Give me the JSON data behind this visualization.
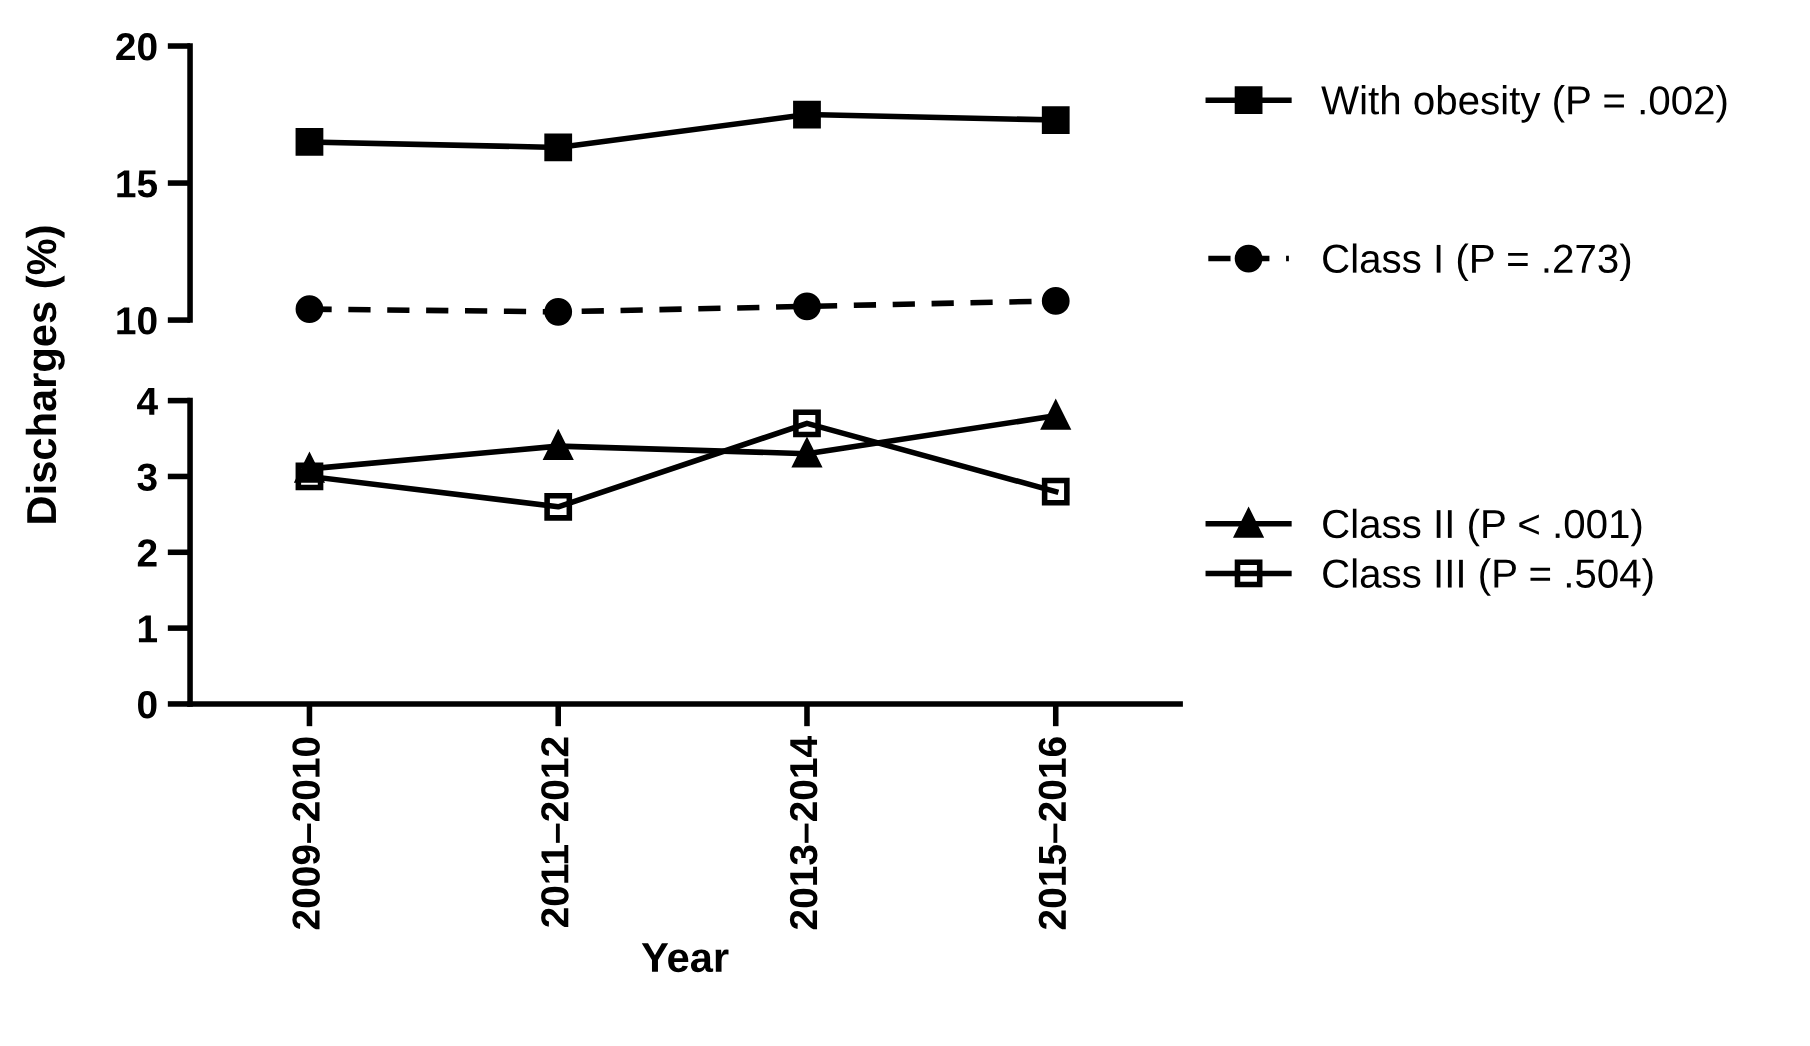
{
  "chart_data": [
    {
      "type": "line",
      "ylim": [
        10,
        20
      ],
      "yticks": [
        10,
        15,
        20
      ],
      "tick_labels": "y",
      "legend": "right",
      "grid": false,
      "series": [
        {
          "name": "With obesity (P = .002)",
          "color": "#000000",
          "marker": "square",
          "line_style": "solid",
          "values": [
            16.5,
            16.3,
            17.5,
            17.3
          ]
        },
        {
          "name": "Class I (P = .273)",
          "color": "#000000",
          "marker": "circle",
          "line_style": "dashed",
          "values": [
            10.4,
            10.3,
            10.5,
            10.7
          ]
        }
      ]
    },
    {
      "type": "line",
      "categories": [
        "2009–2010",
        "2011–2012",
        "2013–2014",
        "2015–2016"
      ],
      "ylim": [
        0,
        4
      ],
      "yticks": [
        0,
        1,
        2,
        3,
        4
      ],
      "xlabel": "Year",
      "ylabel": "Discharges (%)",
      "legend": "right",
      "grid": false,
      "series": [
        {
          "name": "Class II (P < .001)",
          "color": "#000000",
          "marker": "triangle",
          "line_style": "solid",
          "values": [
            3.1,
            3.4,
            3.3,
            3.8
          ]
        },
        {
          "name": "Class III (P = .504)",
          "color": "#000000",
          "marker": "square",
          "line_style": "solid",
          "values": [
            3.0,
            2.6,
            3.7,
            2.8
          ]
        }
      ]
    }
  ]
}
